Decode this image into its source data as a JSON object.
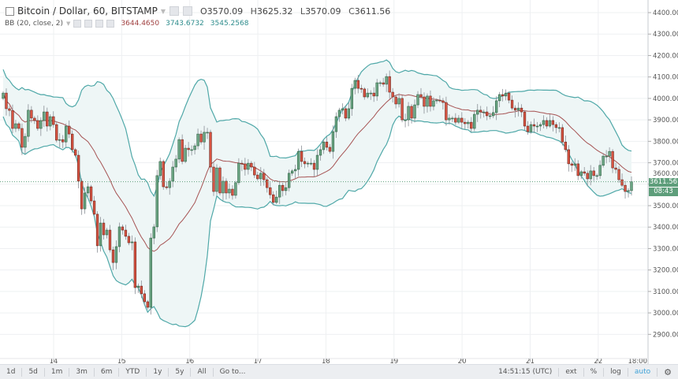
{
  "legend": {
    "symbol": "Bitcoin / Dollar, 60, BITSTAMP",
    "open_label": "O",
    "open": "3570.09",
    "high_label": "H",
    "high": "3625.32",
    "low_label": "L",
    "low": "3570.09",
    "close_label": "C",
    "close": "3611.56"
  },
  "indicator": {
    "name": "BB (20, close, 2)",
    "basis": "3644.4650",
    "upper": "3743.6732",
    "lower": "3545.2568"
  },
  "price_axis": {
    "ticks": [
      "4400.00",
      "4300.00",
      "4200.00",
      "4100.00",
      "4000.00",
      "3900.00",
      "3800.00",
      "3700.00",
      "3600.00",
      "3500.00",
      "3400.00",
      "3300.00",
      "3200.00",
      "3100.00",
      "3000.00",
      "2900.00"
    ],
    "last_price": "3611.56",
    "countdown": "08:43"
  },
  "time_axis": {
    "ticks": [
      "14",
      "15",
      "16",
      "17",
      "18",
      "19",
      "20",
      "21",
      "22",
      "18:00"
    ]
  },
  "colors": {
    "up": "#6ba583",
    "up_border": "#225437",
    "down": "#d75442",
    "down_border": "#5b1a13",
    "band": "#4fa8a8",
    "band_fill": "#eef6f6",
    "basis": "#a65353",
    "last_price": "#5e9e7b",
    "accent": "#3ea2d8"
  },
  "chart_data": {
    "type": "candlestick",
    "interval": "60",
    "ylim": [
      2850,
      4450
    ],
    "grid": true,
    "first_open": 4000,
    "closes": [
      4025,
      3952,
      3944,
      3860,
      3882,
      3860,
      3772,
      3823,
      3945,
      3908,
      3897,
      3860,
      3897,
      3937,
      3871,
      3915,
      3878,
      3805,
      3808,
      3797,
      3871,
      3834,
      3761,
      3735,
      3614,
      3485,
      3559,
      3588,
      3522,
      3460,
      3313,
      3419,
      3364,
      3386,
      3294,
      3235,
      3309,
      3401,
      3386,
      3357,
      3327,
      3331,
      3118,
      3125,
      3089,
      3052,
      3026,
      3349,
      3401,
      3640,
      3706,
      3588,
      3584,
      3614,
      3680,
      3717,
      3808,
      3706,
      3768,
      3761,
      3761,
      3779,
      3834,
      3797,
      3842,
      3842,
      3680,
      3566,
      3676,
      3559,
      3614,
      3559,
      3577,
      3548,
      3607,
      3698,
      3695,
      3669,
      3698,
      3680,
      3643,
      3625,
      3651,
      3621,
      3584,
      3551,
      3515,
      3540,
      3595,
      3570,
      3584,
      3651,
      3662,
      3669,
      3753,
      3706,
      3695,
      3698,
      3698,
      3669,
      3735,
      3761,
      3797,
      3772,
      3753,
      3845,
      3915,
      3945,
      3952,
      3908,
      3952,
      4047,
      4084,
      4047,
      4044,
      4007,
      4025,
      4025,
      4011,
      4073,
      4073,
      4066,
      4102,
      4029,
      4007,
      3974,
      4000,
      3900,
      3900,
      3963,
      3908,
      3970,
      4018,
      4007,
      3963,
      4011,
      3963,
      3989,
      3992,
      3989,
      3981,
      3900,
      3908,
      3908,
      3889,
      3908,
      3889,
      3882,
      3889,
      3860,
      3926,
      3945,
      3937,
      3937,
      3919,
      3919,
      3934,
      3989,
      4018,
      4011,
      4025,
      3992,
      3955,
      3945,
      3955,
      3937,
      3871,
      3845,
      3878,
      3871,
      3871,
      3878,
      3897,
      3871,
      3897,
      3878,
      3864,
      3864,
      3797,
      3761,
      3695,
      3688,
      3695,
      3640,
      3658,
      3651,
      3625,
      3662,
      3640,
      3640,
      3688,
      3731,
      3731,
      3753,
      3676,
      3669,
      3621,
      3595,
      3566,
      3570.09,
      3611.56
    ]
  },
  "toolbar": {
    "ranges": [
      "1d",
      "5d",
      "1m",
      "3m",
      "6m",
      "YTD",
      "1y",
      "5y",
      "All"
    ],
    "goto": "Go to...",
    "clock": "14:51:15 (UTC)",
    "ext": "ext",
    "percent": "%",
    "log": "log",
    "auto": "auto",
    "settings_icon": "gear-icon"
  }
}
